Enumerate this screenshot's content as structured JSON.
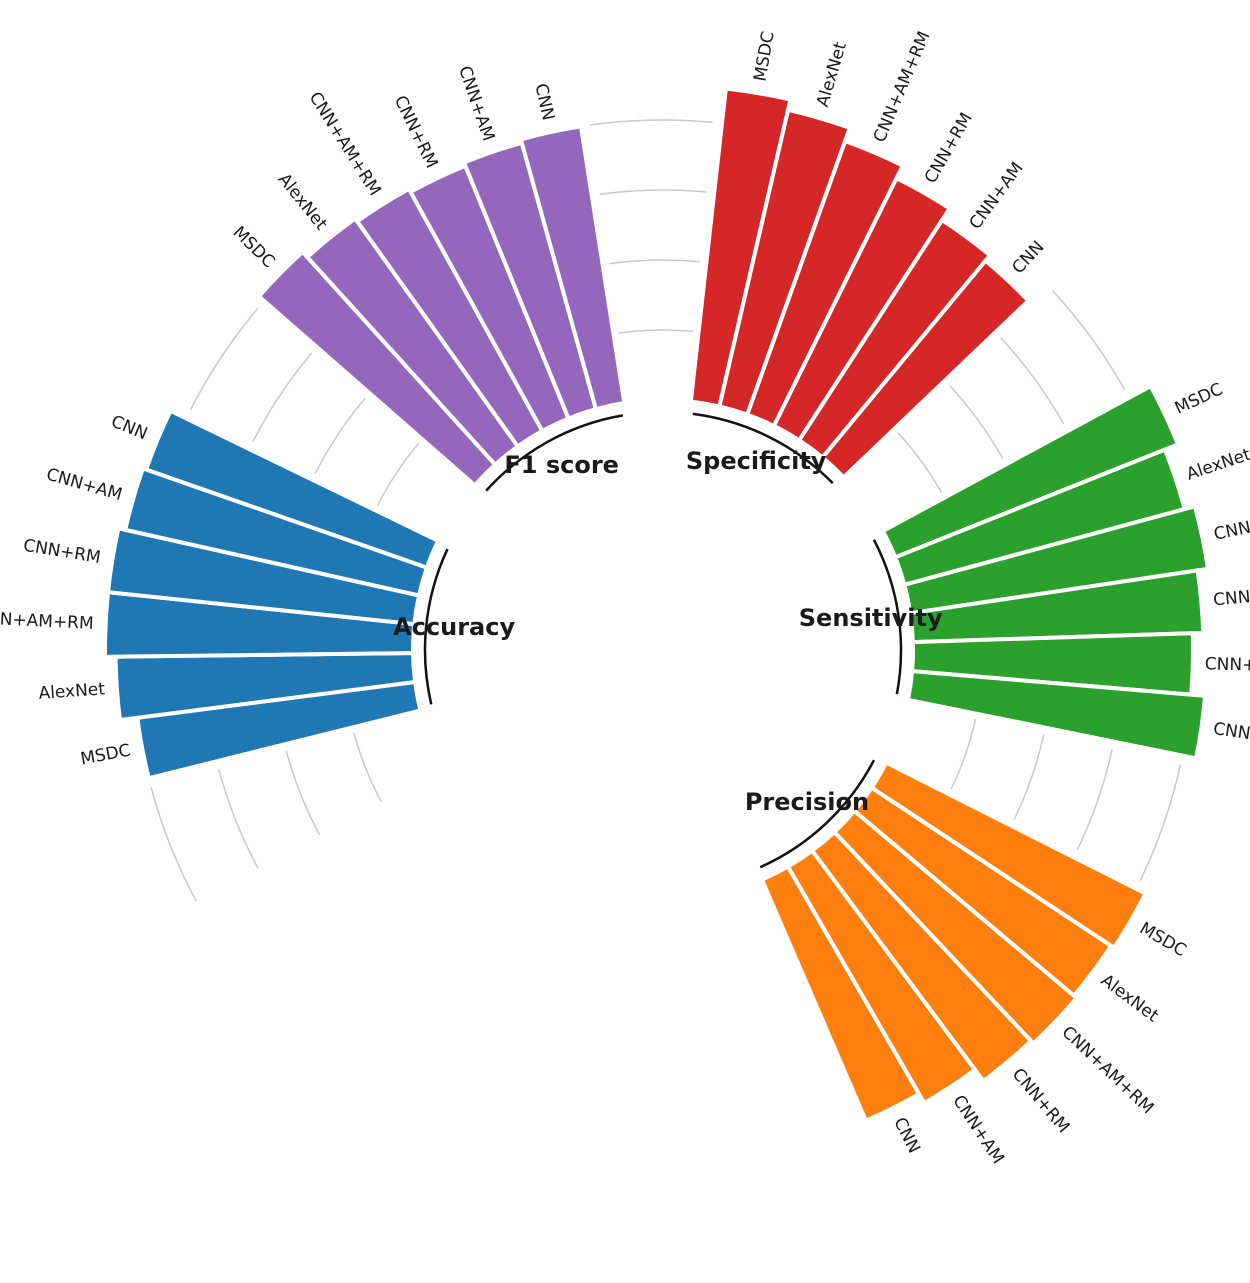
{
  "chart_data": {
    "type": "bar",
    "subtype": "circular-grouped",
    "grid": true,
    "legend": "none",
    "ylim": [
      0,
      1
    ],
    "colors": [
      "#1f77b4",
      "#9467bd",
      "#d62728",
      "#2ca02c",
      "#ff7f0e"
    ],
    "groups": [
      {
        "name": "Accuracy",
        "color": "#1f77b4",
        "categories": [
          "MSDC",
          "AlexNet",
          "CNN+AM+RM",
          "CNN+RM",
          "CNN+AM",
          "CNN"
        ],
        "values": [
          0.8,
          0.85,
          0.88,
          0.88,
          0.86,
          0.85
        ]
      },
      {
        "name": "F1 score",
        "color": "#9467bd",
        "categories": [
          "MSDC",
          "AlexNet",
          "CNN+AM+RM",
          "CNN+RM",
          "CNN+AM",
          "CNN"
        ],
        "values": [
          0.82,
          0.8,
          0.79,
          0.78,
          0.79,
          0.8
        ]
      },
      {
        "name": "Specificity",
        "color": "#d62728",
        "categories": [
          "MSDC",
          "AlexNet",
          "CNN+AM+RM",
          "CNN+RM",
          "CNN+AM",
          "CNN"
        ],
        "values": [
          0.9,
          0.87,
          0.83,
          0.79,
          0.75,
          0.73
        ]
      },
      {
        "name": "Sensitivity",
        "color": "#2ca02c",
        "categories": [
          "MSDC",
          "AlexNet",
          "CNN+AM+RM",
          "CNN+RM",
          "CNN+AM",
          "CNN"
        ],
        "values": [
          0.87,
          0.83,
          0.86,
          0.83,
          0.8,
          0.84
        ]
      },
      {
        "name": "Precision",
        "color": "#ff7f0e",
        "categories": [
          "MSDC",
          "AlexNet",
          "CNN+AM+RM",
          "CNN+RM",
          "CNN+AM",
          "CNN"
        ],
        "values": [
          0.83,
          0.82,
          0.83,
          0.82,
          0.78,
          0.75
        ]
      }
    ]
  }
}
